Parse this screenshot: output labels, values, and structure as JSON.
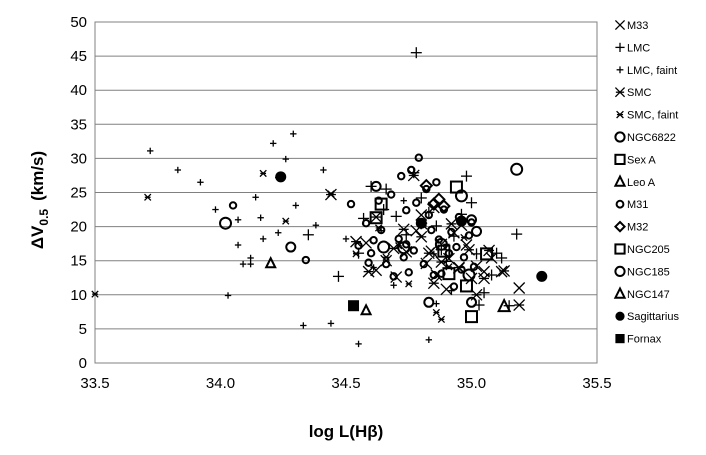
{
  "chart_data": {
    "type": "scatter",
    "title": "",
    "xlabel": "log L(Hβ)",
    "ylabel_main": "ΔV",
    "ylabel_sub": "0.5",
    "ylabel_unit": "(km/s)",
    "xlim": [
      33.5,
      35.5
    ],
    "ylim": [
      0,
      50
    ],
    "xticks": [
      "33.5",
      "34.0",
      "34.5",
      "35.0",
      "35.5"
    ],
    "yticks": [
      "0",
      "5",
      "10",
      "15",
      "20",
      "25",
      "30",
      "35",
      "40",
      "45",
      "50"
    ],
    "grid": "horizontal",
    "legend_position": "right",
    "series": [
      {
        "name": "M33",
        "marker": "x",
        "size": "large",
        "points": [
          [
            34.58,
            17.6
          ],
          [
            34.62,
            13.6
          ],
          [
            34.66,
            15.0
          ],
          [
            34.7,
            12.6
          ],
          [
            34.74,
            16.3
          ],
          [
            34.78,
            19.4
          ],
          [
            34.8,
            21.7
          ],
          [
            34.82,
            14.6
          ],
          [
            34.85,
            22.8
          ],
          [
            34.86,
            12.9
          ],
          [
            34.88,
            17.4
          ],
          [
            34.9,
            10.8
          ],
          [
            34.91,
            15.3
          ],
          [
            34.93,
            19.1
          ],
          [
            34.95,
            13.9
          ],
          [
            34.98,
            17.3
          ],
          [
            35.0,
            12.4
          ],
          [
            35.02,
            14.2
          ],
          [
            35.05,
            13.4
          ],
          [
            35.08,
            15.4
          ],
          [
            35.12,
            13.4
          ],
          [
            35.19,
            11.0
          ],
          [
            34.84,
            16.4
          ],
          [
            34.96,
            20.2
          ]
        ]
      },
      {
        "name": "LMC",
        "marker": "+",
        "size": "large",
        "points": [
          [
            34.6,
            25.9
          ],
          [
            34.66,
            25.5
          ],
          [
            34.7,
            21.5
          ],
          [
            34.74,
            18.8
          ],
          [
            34.78,
            45.5
          ],
          [
            34.77,
            27.9
          ],
          [
            34.8,
            24.2
          ],
          [
            34.83,
            22.1
          ],
          [
            34.86,
            20.1
          ],
          [
            34.88,
            16.6
          ],
          [
            34.9,
            14.9
          ],
          [
            34.93,
            18.6
          ],
          [
            34.96,
            21.8
          ],
          [
            34.98,
            27.4
          ],
          [
            35.0,
            23.5
          ],
          [
            35.02,
            16.0
          ],
          [
            35.05,
            10.3
          ],
          [
            35.08,
            12.9
          ],
          [
            35.12,
            15.4
          ],
          [
            35.15,
            8.4
          ],
          [
            35.18,
            18.9
          ],
          [
            35.1,
            16.1
          ],
          [
            35.03,
            8.5
          ],
          [
            34.57,
            21.2
          ],
          [
            34.47,
            12.7
          ],
          [
            34.35,
            18.8
          ],
          [
            34.55,
            16.1
          ],
          [
            34.65,
            22.5
          ]
        ]
      },
      {
        "name": "LMC, faint",
        "marker": "+",
        "size": "small",
        "points": [
          [
            33.72,
            31.1
          ],
          [
            33.83,
            28.3
          ],
          [
            33.92,
            26.5
          ],
          [
            33.98,
            22.5
          ],
          [
            34.03,
            9.9
          ],
          [
            34.07,
            21.0
          ],
          [
            34.07,
            17.3
          ],
          [
            34.09,
            14.5
          ],
          [
            34.12,
            14.5
          ],
          [
            34.14,
            24.3
          ],
          [
            34.16,
            21.3
          ],
          [
            34.17,
            18.2
          ],
          [
            34.21,
            32.2
          ],
          [
            34.23,
            27.2
          ],
          [
            34.26,
            29.9
          ],
          [
            34.29,
            33.6
          ],
          [
            34.3,
            23.1
          ],
          [
            34.33,
            5.5
          ],
          [
            34.38,
            20.2
          ],
          [
            34.41,
            28.3
          ],
          [
            34.44,
            5.8
          ],
          [
            34.5,
            18.2
          ],
          [
            34.55,
            2.8
          ],
          [
            34.61,
            14.0
          ],
          [
            34.69,
            11.4
          ],
          [
            34.73,
            23.8
          ],
          [
            34.83,
            3.4
          ],
          [
            34.85,
            16.0
          ],
          [
            34.9,
            17.4
          ],
          [
            34.92,
            10.6
          ],
          [
            34.12,
            15.4
          ],
          [
            34.23,
            19.1
          ],
          [
            34.64,
            19.4
          ],
          [
            34.86,
            8.7
          ]
        ]
      },
      {
        "name": "SMC",
        "marker": "asterisk",
        "size": "large",
        "points": [
          [
            34.44,
            24.7
          ],
          [
            34.54,
            17.8
          ],
          [
            34.59,
            13.4
          ],
          [
            34.62,
            21.4
          ],
          [
            34.69,
            16.8
          ],
          [
            34.73,
            19.6
          ],
          [
            34.77,
            27.5
          ],
          [
            34.8,
            18.5
          ],
          [
            34.83,
            16.1
          ],
          [
            34.85,
            11.7
          ],
          [
            34.88,
            14.8
          ],
          [
            34.92,
            20.4
          ],
          [
            34.95,
            14.0
          ],
          [
            34.99,
            16.6
          ],
          [
            35.02,
            10.0
          ],
          [
            35.07,
            16.5
          ],
          [
            35.13,
            13.5
          ],
          [
            35.19,
            8.5
          ],
          [
            35.05,
            12.4
          ]
        ]
      },
      {
        "name": "SMC, faint",
        "marker": "asterisk",
        "size": "small",
        "points": [
          [
            33.5,
            10.1
          ],
          [
            33.71,
            24.3
          ],
          [
            34.17,
            27.8
          ],
          [
            34.26,
            20.8
          ],
          [
            34.44,
            24.8
          ],
          [
            34.54,
            16.0
          ],
          [
            34.63,
            19.8
          ],
          [
            34.71,
            17.2
          ],
          [
            34.75,
            11.6
          ],
          [
            34.81,
            20.1
          ],
          [
            34.86,
            7.4
          ],
          [
            34.91,
            14.1
          ],
          [
            34.88,
            6.4
          ],
          [
            34.97,
            18.4
          ],
          [
            34.66,
            15.5
          ]
        ]
      },
      {
        "name": "NGC6822",
        "marker": "circle-open",
        "size": "large",
        "points": [
          [
            34.02,
            20.5
          ],
          [
            34.65,
            17.0
          ],
          [
            34.73,
            16.9
          ],
          [
            34.88,
            17.4
          ],
          [
            34.96,
            24.5
          ],
          [
            34.99,
            12.9
          ],
          [
            35.18,
            28.4
          ]
        ]
      },
      {
        "name": "Sex A",
        "marker": "square-open",
        "size": "large",
        "points": [
          [
            34.94,
            25.8
          ],
          [
            34.91,
            13.1
          ],
          [
            34.98,
            11.3
          ]
        ]
      },
      {
        "name": "Leo A",
        "marker": "triangle-open",
        "size": "large",
        "points": [
          [
            35.13,
            8.3
          ]
        ]
      },
      {
        "name": "M31",
        "marker": "circle-open",
        "size": "small",
        "points": [
          [
            34.05,
            23.1
          ],
          [
            34.34,
            15.1
          ],
          [
            34.52,
            23.3
          ],
          [
            34.55,
            17.2
          ],
          [
            34.58,
            20.5
          ],
          [
            34.59,
            14.7
          ],
          [
            34.61,
            18.0
          ],
          [
            34.63,
            23.8
          ],
          [
            34.64,
            19.5
          ],
          [
            34.66,
            14.5
          ],
          [
            34.68,
            24.7
          ],
          [
            34.69,
            12.7
          ],
          [
            34.71,
            18.2
          ],
          [
            34.72,
            27.4
          ],
          [
            34.73,
            15.5
          ],
          [
            34.74,
            22.4
          ],
          [
            34.75,
            13.3
          ],
          [
            34.76,
            28.3
          ],
          [
            34.77,
            16.5
          ],
          [
            34.78,
            23.5
          ],
          [
            34.79,
            30.1
          ],
          [
            34.8,
            20.6
          ],
          [
            34.81,
            14.5
          ],
          [
            34.82,
            25.5
          ],
          [
            34.84,
            19.5
          ],
          [
            34.85,
            12.9
          ],
          [
            34.86,
            26.5
          ],
          [
            34.87,
            18.1
          ],
          [
            34.88,
            13.1
          ],
          [
            34.89,
            22.5
          ],
          [
            34.91,
            16.1
          ],
          [
            34.92,
            19.2
          ],
          [
            34.93,
            11.2
          ],
          [
            34.94,
            17.0
          ],
          [
            34.95,
            21.4
          ],
          [
            34.97,
            15.5
          ],
          [
            34.99,
            18.7
          ],
          [
            35.0,
            20.6
          ],
          [
            35.01,
            14.1
          ],
          [
            34.6,
            16.1
          ],
          [
            34.74,
            17.4
          ],
          [
            34.83,
            21.7
          ],
          [
            34.96,
            13.7
          ]
        ]
      },
      {
        "name": "M32",
        "marker": "diamond-open",
        "size": "large",
        "points": [
          [
            34.82,
            26.0
          ],
          [
            34.85,
            23.3
          ],
          [
            34.87,
            24.0
          ],
          [
            34.89,
            23.0
          ]
        ]
      },
      {
        "name": "NGC205",
        "marker": "square-open",
        "size": "large",
        "points": [
          [
            34.62,
            21.3
          ],
          [
            34.64,
            23.3
          ],
          [
            34.89,
            16.4
          ],
          [
            35.0,
            6.8
          ],
          [
            35.06,
            16.0
          ]
        ]
      },
      {
        "name": "NGC185",
        "marker": "circle-open",
        "size": "medium",
        "points": [
          [
            34.28,
            17.0
          ],
          [
            34.62,
            25.9
          ],
          [
            34.83,
            8.9
          ],
          [
            35.0,
            21.0
          ],
          [
            35.0,
            8.9
          ],
          [
            35.02,
            19.3
          ]
        ]
      },
      {
        "name": "NGC147",
        "marker": "triangle-open",
        "size": "medium",
        "points": [
          [
            34.2,
            14.6
          ],
          [
            34.58,
            7.7
          ]
        ]
      },
      {
        "name": "Sagittarius",
        "marker": "circle-filled",
        "size": "large",
        "points": [
          [
            34.24,
            27.3
          ],
          [
            34.8,
            20.5
          ],
          [
            34.96,
            20.8
          ],
          [
            35.28,
            12.7
          ]
        ]
      },
      {
        "name": "Fornax",
        "marker": "square-filled",
        "size": "large",
        "points": [
          [
            34.53,
            8.4
          ]
        ]
      }
    ]
  }
}
